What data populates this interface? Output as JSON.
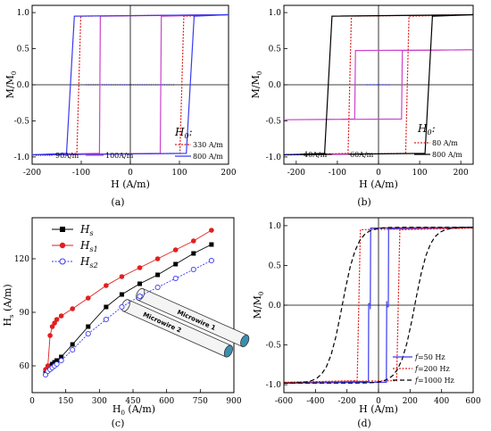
{
  "chart_data": [
    {
      "id": "a",
      "type": "line",
      "panel_label": "(a)",
      "xlabel_main": "H",
      "xlabel_unit": " (A/m)",
      "ylabel_num": "M/M",
      "ylabel_sub": "0",
      "xlim": [
        -200,
        200
      ],
      "ylim": [
        -1.1,
        1.1
      ],
      "xticks": [
        "-200",
        "-100",
        "0",
        "100",
        "200"
      ],
      "xtick_values": [
        -200,
        -100,
        0,
        100,
        200
      ],
      "yticks": [
        "-1.0",
        "-0.5",
        "0.0",
        "0.5",
        "1.0"
      ],
      "ytick_values": [
        -1,
        -0.5,
        0,
        0.5,
        1
      ],
      "legend_title_main": "H",
      "legend_title_sub": "0",
      "legend_title_colon": ":",
      "series": [
        {
          "name": "90A/m",
          "color": "#1a1aa0",
          "dash": "1,1.5",
          "loop": {
            "hc": 0.8,
            "width": 2
          }
        },
        {
          "name": "100A/m",
          "color": "#cc44cc",
          "dash": "",
          "loop": {
            "hc": 62,
            "width": 2
          }
        },
        {
          "name": "330 A/m",
          "color": "#e02020",
          "dash": "2,1.5",
          "loop": {
            "hc": 105,
            "width": 8
          }
        },
        {
          "name": "800 A/m",
          "color": "#3a3af0",
          "dash": "",
          "loop": {
            "hc": 122,
            "width": 16
          }
        }
      ]
    },
    {
      "id": "b",
      "type": "line",
      "panel_label": "(b)",
      "xlabel_main": "H",
      "xlabel_unit": " (A/m)",
      "ylabel_num": "M/M",
      "ylabel_sub": "0",
      "xlim": [
        -230,
        230
      ],
      "ylim": [
        -1.1,
        1.1
      ],
      "xticks": [
        "-200",
        "-100",
        "0",
        "100",
        "200"
      ],
      "xtick_values": [
        -200,
        -100,
        0,
        100,
        200
      ],
      "yticks": [
        "-1.0",
        "-0.5",
        "0.0",
        "0.5",
        "1.0"
      ],
      "ytick_values": [
        -1,
        -0.5,
        0,
        0.5,
        1
      ],
      "legend_title_main": "H",
      "legend_title_sub": "0",
      "legend_title_colon": ":",
      "series": [
        {
          "name": "40A/m",
          "color": "#3a3af0",
          "dash": "2,1.5",
          "loop": {
            "hc": 18,
            "width": 8,
            "ms": 0.0
          }
        },
        {
          "name": "60A/m",
          "color": "#cc44cc",
          "dash": "",
          "loop": {
            "hc": 57,
            "width": 2,
            "ms": 0.5
          }
        },
        {
          "name": "80 A/m",
          "color": "#e02020",
          "dash": "2,1.5",
          "loop": {
            "hc": 70,
            "width": 8,
            "ms": 1.0
          }
        },
        {
          "name": "800 A/m",
          "color": "#000000",
          "dash": "",
          "loop": {
            "hc": 122,
            "width": 18,
            "ms": 1.0
          }
        }
      ]
    },
    {
      "id": "c",
      "type": "line",
      "panel_label": "(c)",
      "xlabel_main": "H",
      "xlabel_sub": "0",
      "xlabel_unit": " (A/m)",
      "ylabel_main": "H",
      "ylabel_sub": "s",
      "ylabel_unit": " (A/m)",
      "xlim": [
        0,
        900
      ],
      "ylim": [
        45,
        143
      ],
      "xticks": [
        "0",
        "150",
        "300",
        "450",
        "600",
        "750",
        "900"
      ],
      "xtick_values": [
        0,
        150,
        300,
        450,
        600,
        750,
        900
      ],
      "yticks": [
        "60",
        "90",
        "120"
      ],
      "ytick_values": [
        60,
        90,
        120
      ],
      "tube_labels": [
        "Microwire 1",
        "Microwire 2"
      ],
      "series": [
        {
          "name_main": "H",
          "name_sub": "s",
          "color": "#000000",
          "marker": "square",
          "x": [
            60,
            70,
            80,
            90,
            100,
            110,
            130,
            180,
            250,
            330,
            400,
            480,
            560,
            640,
            720,
            800
          ],
          "y": [
            57,
            59,
            60,
            61,
            62,
            63,
            65,
            72,
            82,
            93,
            100,
            106,
            111,
            117,
            123,
            128
          ]
        },
        {
          "name_main": "H",
          "name_sub": "s1",
          "color": "#e02020",
          "marker": "circle",
          "x": [
            60,
            70,
            80,
            90,
            100,
            110,
            130,
            180,
            250,
            330,
            400,
            480,
            560,
            640,
            720,
            800
          ],
          "y": [
            58,
            60,
            77,
            82,
            84,
            86,
            88,
            92,
            98,
            105,
            110,
            115,
            120,
            125,
            130,
            136
          ]
        },
        {
          "name_main": "H",
          "name_sub": "s2",
          "color": "#3a3af0",
          "marker": "opencircle",
          "x": [
            60,
            70,
            80,
            90,
            100,
            110,
            130,
            180,
            250,
            330,
            400,
            480,
            560,
            640,
            720,
            800
          ],
          "y": [
            55,
            57,
            58,
            59,
            60,
            61,
            63,
            69,
            78,
            86,
            93,
            99,
            104,
            109,
            114,
            119
          ]
        }
      ]
    },
    {
      "id": "d",
      "type": "line",
      "panel_label": "(d)",
      "xlabel_main": "H",
      "xlabel_unit": " (A/m)",
      "ylabel_num": "M/M",
      "ylabel_sub": "0",
      "xlim": [
        -600,
        600
      ],
      "ylim": [
        -1.1,
        1.1
      ],
      "xticks": [
        "-600",
        "-400",
        "-200",
        "0",
        "200",
        "400",
        "600"
      ],
      "xtick_values": [
        -600,
        -400,
        -200,
        0,
        200,
        400,
        600
      ],
      "yticks": [
        "-1.0",
        "-0.5",
        "0.0",
        "0.5",
        "1.0"
      ],
      "ytick_values": [
        -1,
        -0.5,
        0,
        0.5,
        1
      ],
      "series": [
        {
          "name_italic": "f",
          "name_rest": "=50 Hz",
          "color": "#3a3af0",
          "dash": "",
          "loop": {
            "hc": 60,
            "width": 10,
            "step": true
          }
        },
        {
          "name_italic": "f",
          "name_rest": "=200 Hz",
          "color": "#e02020",
          "dash": "2,1.5",
          "loop": {
            "hc": 125,
            "width": 20
          }
        },
        {
          "name_italic": "f",
          "name_rest": "=1000 Hz",
          "color": "#000000",
          "dash": "5,3",
          "loop": {
            "hc": 230,
            "width": 150
          }
        }
      ]
    }
  ]
}
